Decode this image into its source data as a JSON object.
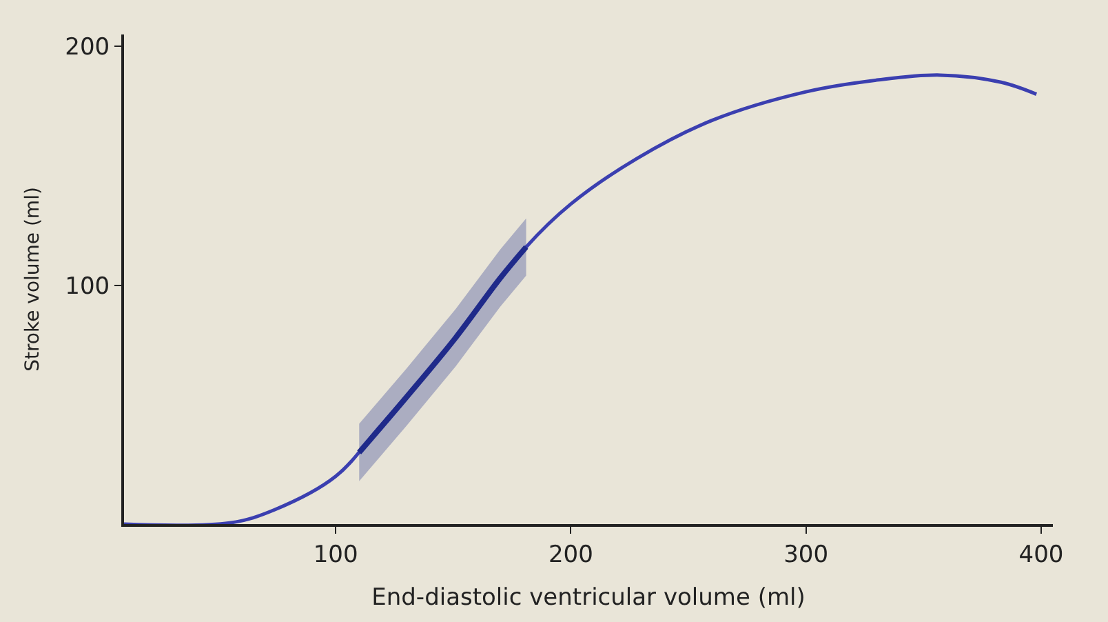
{
  "chart_data": {
    "type": "line",
    "xlabel": "End-diastolic ventricular volume (ml)",
    "ylabel": "Stroke volume (ml)",
    "xlim": [
      10,
      405
    ],
    "ylim": [
      0,
      205
    ],
    "xticks": [
      100,
      200,
      300,
      400
    ],
    "yticks": [
      100,
      200
    ],
    "grid": false,
    "marker": "none",
    "line_style": "solid",
    "series": [
      {
        "color": "#3b3fb0",
        "x": [
          10,
          55,
          74,
          100,
          119,
          151,
          181,
          200,
          228,
          260,
          300,
          331,
          357,
          383,
          398
        ],
        "values": [
          0,
          0.5,
          6,
          20,
          41,
          78,
          116,
          134,
          153,
          169,
          181,
          186,
          188,
          185,
          180
        ]
      },
      {
        "color": "#1f2a8a",
        "x": [
          110,
          130,
          151,
          170,
          181
        ],
        "values": [
          30,
          53,
          78,
          103,
          116
        ],
        "lower": [
          18,
          41,
          66,
          91,
          104
        ],
        "upper": [
          42,
          65,
          90,
          115,
          128
        ]
      }
    ]
  }
}
